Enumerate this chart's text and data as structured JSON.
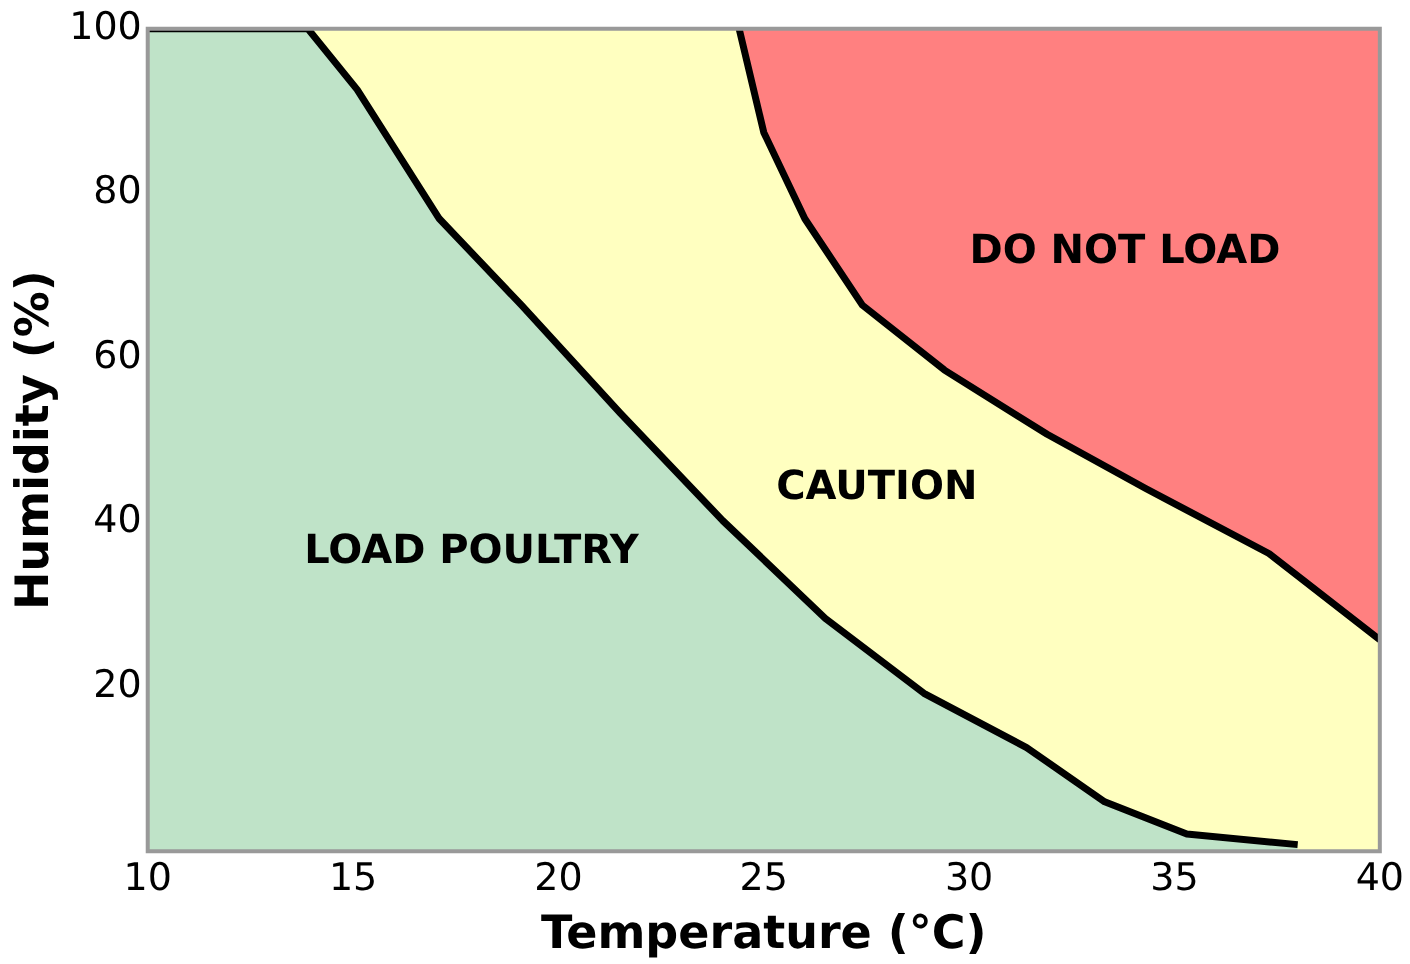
{
  "chart_data": {
    "type": "area",
    "xlabel": "Temperature (°C)",
    "ylabel": "Humidity (%)",
    "xlim": [
      10,
      40
    ],
    "xticks": [
      10,
      15,
      20,
      25,
      30,
      35,
      40
    ],
    "ylim": [
      0,
      100
    ],
    "yticks": [
      20,
      40,
      60,
      80,
      100
    ],
    "series": [
      {
        "name": "CAUTION",
        "color": "#ffffc0",
        "x": [
          10,
          24.4,
          25.0,
          26.0,
          27.4,
          29.4,
          31.9,
          34.3,
          37.3,
          40.0
        ],
        "values": [
          100,
          100,
          87.4,
          76.9,
          66.4,
          58.5,
          50.7,
          44.1,
          36.2,
          25.7
        ]
      },
      {
        "name": "LOAD POULTRY",
        "color": "#bfe3c8",
        "x": [
          10,
          13.9,
          15.1,
          17.1,
          19.1,
          21.5,
          24.0,
          26.5,
          28.9,
          31.4,
          33.3,
          35.3,
          38.0
        ],
        "values": [
          100,
          100,
          92.6,
          76.9,
          66.4,
          53.3,
          40.2,
          28.3,
          19.2,
          12.6,
          6.0,
          2.1,
          0.8
        ]
      },
      {
        "name": "DO NOT LOAD",
        "color": "#ff8080",
        "x": [
          24.4,
          25.0,
          26.0,
          27.4,
          29.4,
          31.9,
          34.3,
          37.3,
          40.0,
          40.0
        ],
        "values": [
          100,
          87.4,
          76.9,
          66.4,
          58.5,
          50.7,
          44.1,
          36.2,
          25.7,
          100
        ]
      }
    ]
  }
}
